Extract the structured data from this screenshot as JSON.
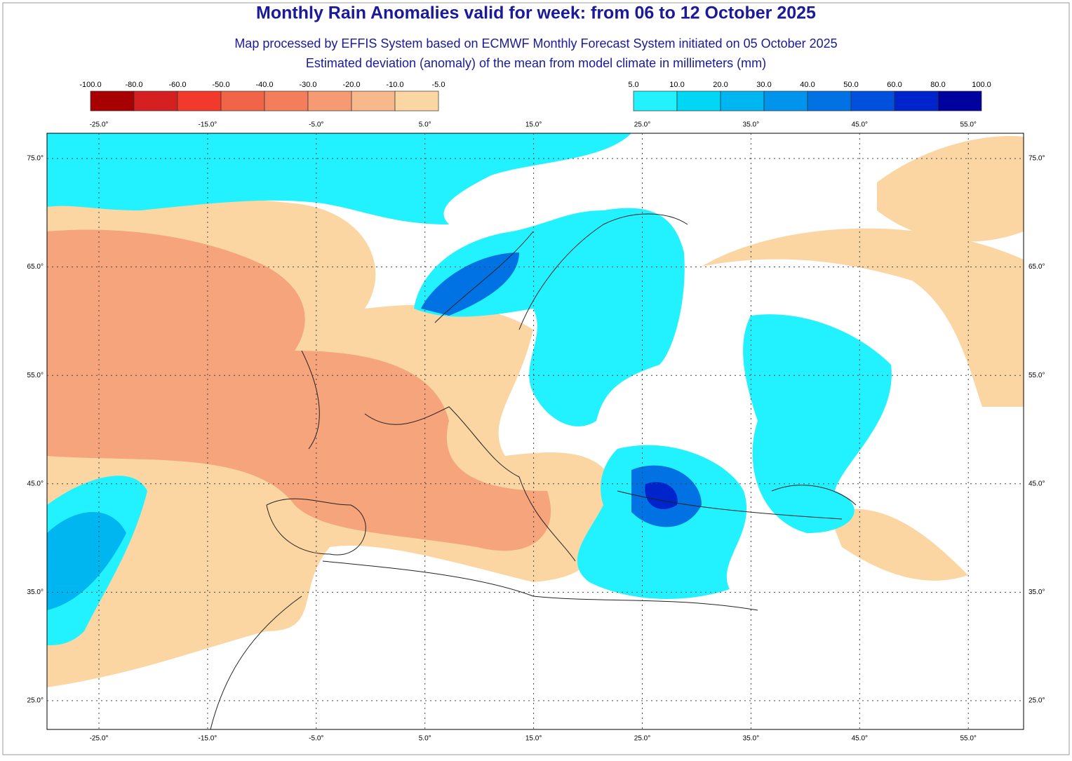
{
  "header": {
    "title": "Monthly Rain Anomalies valid for week: from 06 to 12 October 2025",
    "subtitle": "Map processed by EFFIS System based on ECMWF Monthly Forecast System initiated on 05 October 2025",
    "description": "Estimated deviation (anomaly) of the mean from model climate in millimeters (mm)"
  },
  "legend_negative": {
    "labels": [
      "-100.0",
      "-80.0",
      "-60.0",
      "-50.0",
      "-40.0",
      "-30.0",
      "-20.0",
      "-10.0",
      "-5.0"
    ],
    "colors": [
      "#a80000",
      "#d42020",
      "#f23a2c",
      "#f26448",
      "#f47e5c",
      "#f59a72",
      "#f7b88c",
      "#fbd6a2"
    ]
  },
  "legend_positive": {
    "labels": [
      "5.0",
      "10.0",
      "20.0",
      "30.0",
      "40.0",
      "50.0",
      "60.0",
      "80.0",
      "100.0"
    ],
    "colors": [
      "#22f2ff",
      "#00d6f6",
      "#00b6f0",
      "#0094ec",
      "#0072e4",
      "#0050de",
      "#0024cc",
      "#00009e"
    ]
  },
  "longitude_labels": [
    "-25.0°",
    "-15.0°",
    "-5.0°",
    "5.0°",
    "15.0°",
    "25.0°",
    "35.0°",
    "45.0°",
    "55.0°"
  ],
  "latitude_labels": [
    "75.0°",
    "65.0°",
    "55.0°",
    "45.0°",
    "35.0°",
    "25.0°"
  ]
}
